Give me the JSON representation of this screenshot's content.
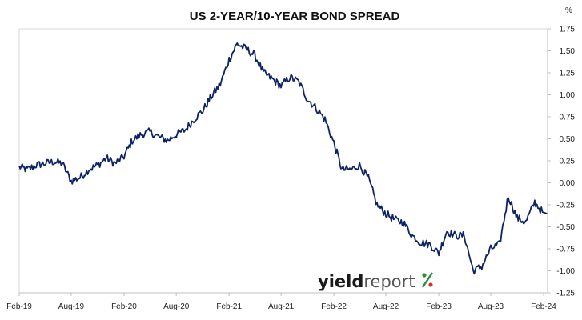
{
  "chart_data": {
    "type": "line",
    "title": "US 2-YEAR/10-YEAR BOND SPREAD",
    "xlabel": "",
    "ylabel": "%",
    "x_tick_labels": [
      "Feb-19",
      "Aug-19",
      "Feb-20",
      "Aug-20",
      "Feb-21",
      "Aug-21",
      "Feb-22",
      "Aug-22",
      "Feb-23",
      "Aug-23",
      "Feb-24"
    ],
    "y_tick_labels": [
      "1.75",
      "1.50",
      "1.25",
      "1.00",
      "0.75",
      "0.50",
      "0.25",
      "0.00",
      "-0.25",
      "-0.50",
      "-0.75",
      "-1.00",
      "-1.25"
    ],
    "ylim": [
      -1.25,
      1.75
    ],
    "xlim": [
      "2019-02-01",
      "2024-02-15"
    ],
    "y_axis_side": "right",
    "grid": "none",
    "line_color": "#0d2366",
    "series": [
      {
        "values_monthly_start": "2019-02",
        "x": [
          "2019-02",
          "2019-03",
          "2019-04",
          "2019-05",
          "2019-06",
          "2019-07",
          "2019-08",
          "2019-09",
          "2019-10",
          "2019-11",
          "2019-12",
          "2020-01",
          "2020-02",
          "2020-03",
          "2020-04",
          "2020-05",
          "2020-06",
          "2020-07",
          "2020-08",
          "2020-09",
          "2020-10",
          "2020-11",
          "2020-12",
          "2021-01",
          "2021-02",
          "2021-03",
          "2021-04",
          "2021-05",
          "2021-06",
          "2021-07",
          "2021-08",
          "2021-09",
          "2021-10",
          "2021-11",
          "2021-12",
          "2022-01",
          "2022-02",
          "2022-03",
          "2022-04",
          "2022-05",
          "2022-06",
          "2022-07",
          "2022-08",
          "2022-09",
          "2022-10",
          "2022-11",
          "2022-12",
          "2023-01",
          "2023-02",
          "2023-03",
          "2023-04",
          "2023-05",
          "2023-06",
          "2023-07",
          "2023-08",
          "2023-09",
          "2023-10",
          "2023-11",
          "2023-12",
          "2024-01",
          "2024-02"
        ],
        "values": [
          0.18,
          0.15,
          0.2,
          0.22,
          0.24,
          0.22,
          0.02,
          0.06,
          0.15,
          0.2,
          0.28,
          0.22,
          0.3,
          0.48,
          0.55,
          0.58,
          0.52,
          0.48,
          0.55,
          0.6,
          0.72,
          0.82,
          0.98,
          1.12,
          1.4,
          1.58,
          1.52,
          1.45,
          1.25,
          1.18,
          1.1,
          1.2,
          1.15,
          0.95,
          0.85,
          0.72,
          0.45,
          0.15,
          0.15,
          0.2,
          0.05,
          -0.25,
          -0.35,
          -0.42,
          -0.45,
          -0.6,
          -0.68,
          -0.7,
          -0.8,
          -0.55,
          -0.6,
          -0.6,
          -1.0,
          -0.95,
          -0.75,
          -0.7,
          -0.15,
          -0.4,
          -0.45,
          -0.22,
          -0.35
        ]
      }
    ]
  },
  "logo": {
    "part1": "yield",
    "part2": "report",
    "percent_glyph": "%"
  }
}
